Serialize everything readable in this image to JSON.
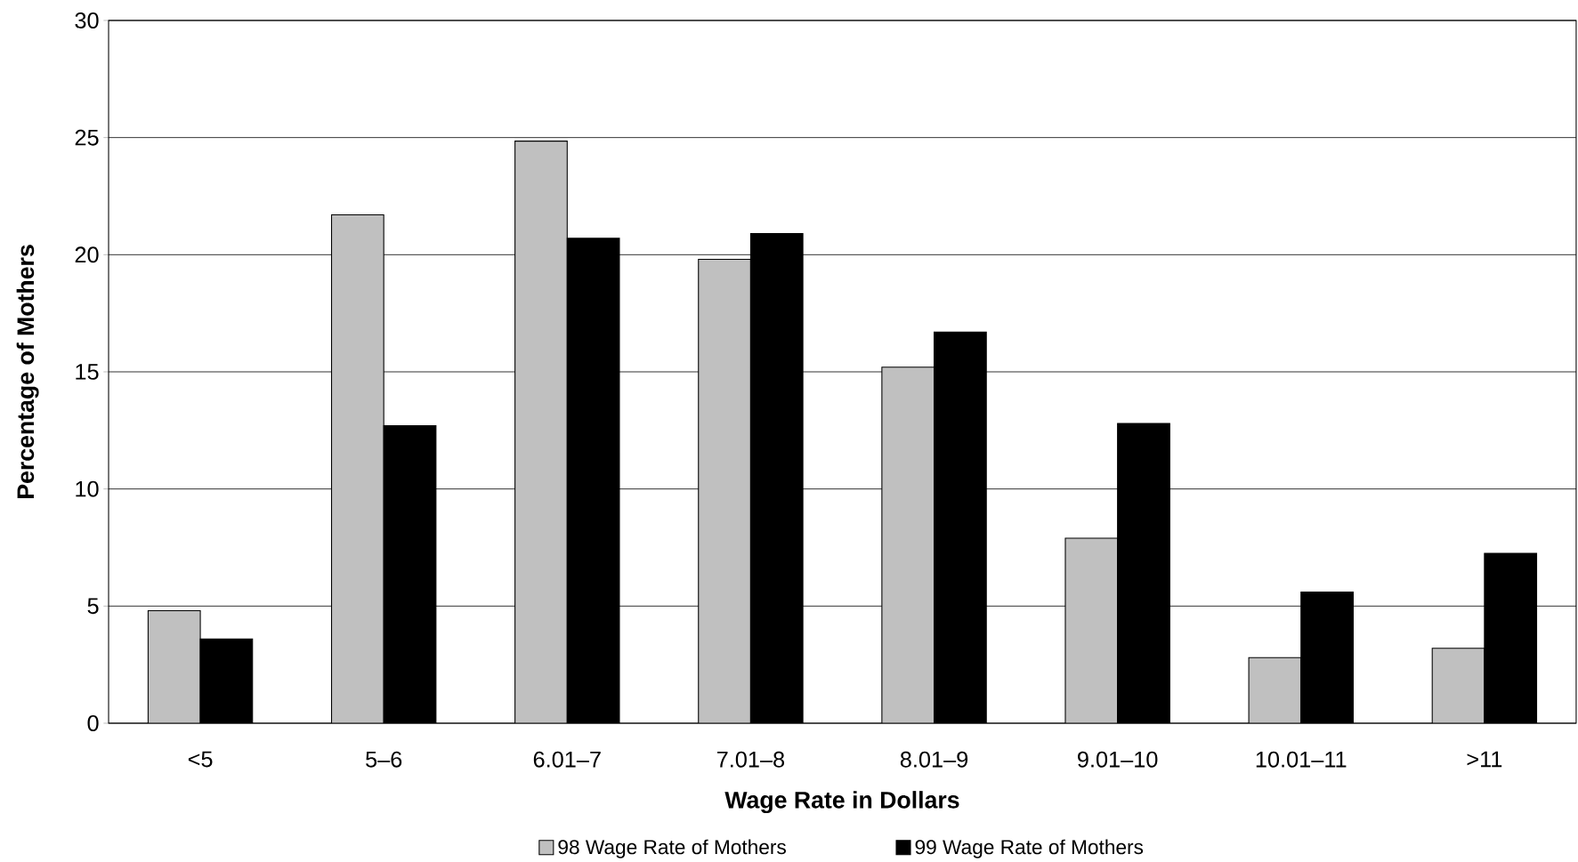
{
  "chart_data": {
    "type": "bar",
    "xlabel": "Wage Rate in Dollars",
    "ylabel": "Percentage of Mothers",
    "categories": [
      "<5",
      "5–6",
      "6.01–7",
      "7.01–8",
      "8.01–9",
      "9.01–10",
      "10.01–11",
      ">11"
    ],
    "series": [
      {
        "name": "98 Wage Rate of Mothers",
        "color": "#c0c0c0",
        "values": [
          4.8,
          21.7,
          24.85,
          19.8,
          15.2,
          7.9,
          2.8,
          3.2
        ]
      },
      {
        "name": "99 Wage Rate of Mothers",
        "color": "#000000",
        "values": [
          3.6,
          12.7,
          20.7,
          20.9,
          16.7,
          12.8,
          5.6,
          7.25
        ]
      }
    ],
    "ylim": [
      0,
      30
    ],
    "yticks": [
      0,
      5,
      10,
      15,
      20,
      25,
      30
    ],
    "grid": "y",
    "legend": "bottom"
  }
}
